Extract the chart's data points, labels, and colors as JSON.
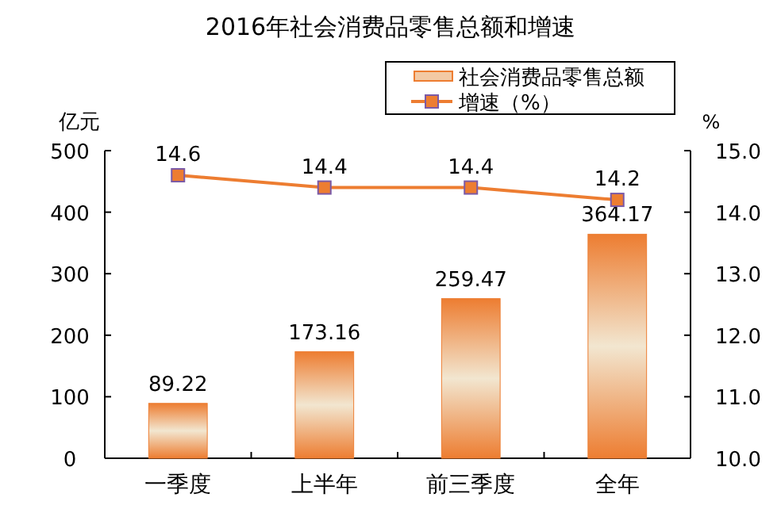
{
  "chart_data": {
    "type": "bar",
    "title": "2016年社会消费品零售总额和增速",
    "categories": [
      "一季度",
      "上半年",
      "前三季度",
      "全年"
    ],
    "series": [
      {
        "name": "社会消费品零售总额",
        "color": "#ed7d31",
        "values": [
          89.22,
          173.16,
          259.47,
          364.17
        ]
      },
      {
        "name": "增速（%）",
        "type": "line",
        "axis": "y2",
        "color": "#ed7d31",
        "values": [
          14.6,
          14.4,
          14.4,
          14.2
        ],
        "marker": "square"
      }
    ],
    "ylabel": "亿元",
    "y2label": "%",
    "ylim": [
      0,
      500
    ],
    "yticks": [
      0,
      100,
      200,
      300,
      400,
      500
    ],
    "y2lim": [
      10,
      15
    ],
    "y2ticks": [
      {
        "value": 10,
        "label": "10.0"
      },
      {
        "value": 11,
        "label": "11.0"
      },
      {
        "value": 12,
        "label": "12.0"
      },
      {
        "value": 13,
        "label": "13.0"
      },
      {
        "value": 14,
        "label": "14.0"
      },
      {
        "value": 15,
        "label": "15.0"
      }
    ],
    "data_labels": true,
    "grid": false,
    "legend": "top right"
  }
}
